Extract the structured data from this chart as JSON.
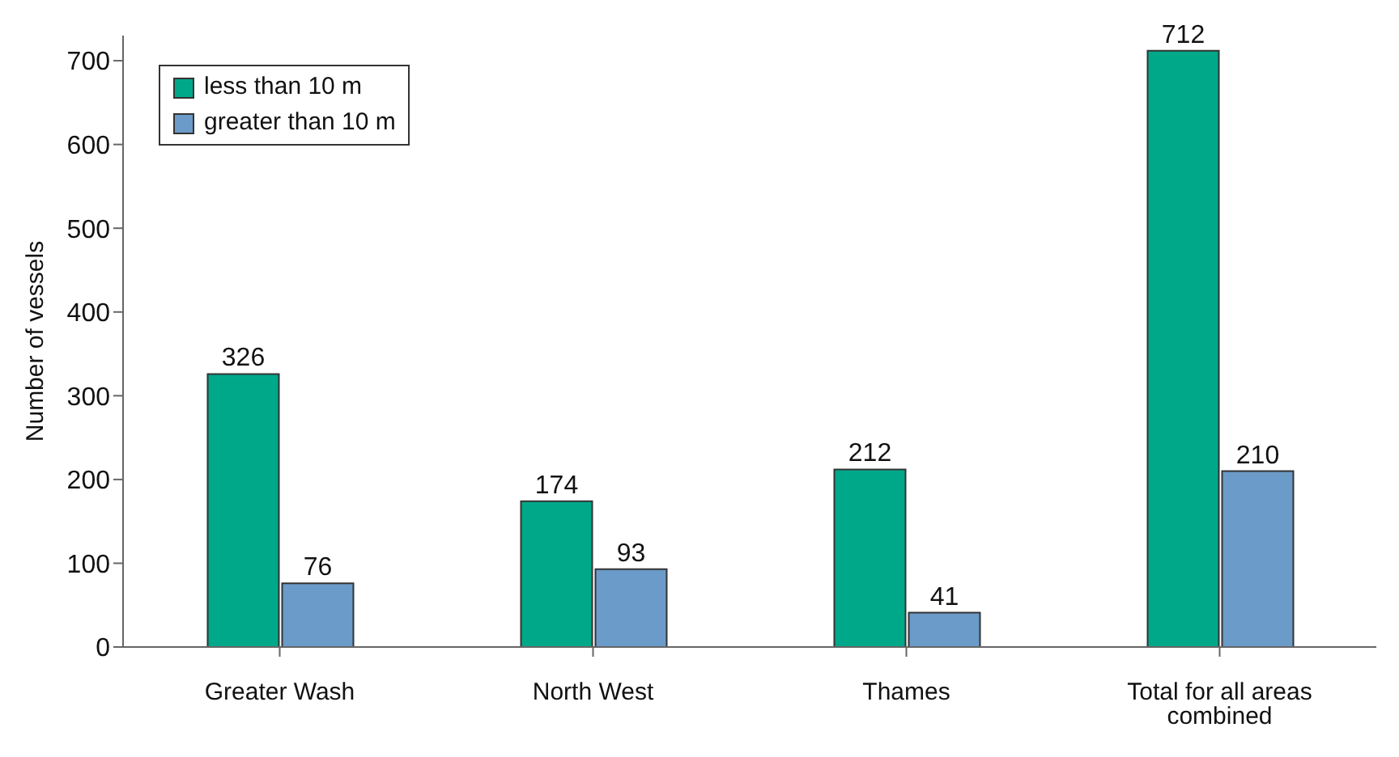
{
  "chart_data": {
    "type": "bar",
    "ylabel": "Number of vessels",
    "categories": [
      "Greater Wash",
      "North West",
      "Thames",
      "Total for all areas combined"
    ],
    "series": [
      {
        "name": "less than 10 m",
        "color": "#00a88a",
        "values": [
          326,
          174,
          212,
          712
        ]
      },
      {
        "name": "greater than 10 m",
        "color": "#6b9bc8",
        "values": [
          76,
          93,
          41,
          210
        ]
      }
    ],
    "ylim": [
      0,
      730
    ],
    "yticks": [
      0,
      100,
      200,
      300,
      400,
      500,
      600,
      700
    ],
    "data_labels": true,
    "legend": "top left",
    "grid": false
  }
}
